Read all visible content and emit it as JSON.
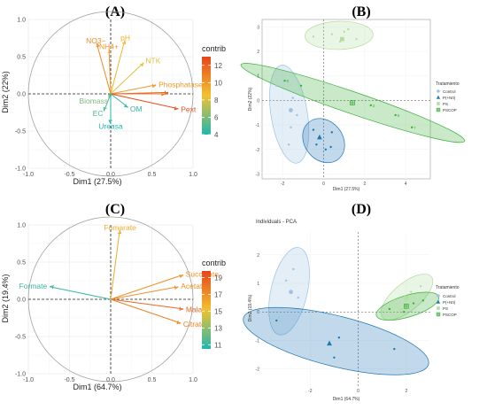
{
  "panels": {
    "A": {
      "label": "(A)",
      "xlabel": "Dim1 (27.5%)",
      "ylabel": "Dim2 (22%)",
      "legend_title": "contrib"
    },
    "B": {
      "label": "(B)",
      "xlabel": "Dim1 (27.5%)",
      "ylabel": "Dim2 (22%)",
      "legend_title": "Tratamiento"
    },
    "C": {
      "label": "(C)",
      "xlabel": "Dim1 (64.7%)",
      "ylabel": "Dim2 (19.4%)",
      "legend_title": "contrib"
    },
    "D": {
      "label": "(D)",
      "title": "Individuals - PCA",
      "xlabel": "Dim1 (64.7%)",
      "ylabel": "Dim2 (19.4%)",
      "legend_title": "Tratamiento"
    }
  },
  "colors": {
    "contrib_low": "#1FB6B0",
    "contrib_mid": "#F2C230",
    "contrib_high": "#E8451A",
    "control": "#9CC3E4",
    "pnd": "#1F77B4",
    "ps": "#B5DDA0",
    "pscop": "#3CAF3C",
    "grid": "#EBEBEB",
    "axis_text": "#4D4D4D"
  },
  "chart_data": [
    {
      "panel": "A",
      "type": "scatter",
      "subtype": "pca-variable-correlation-circle",
      "xlabel": "Dim1 (27.5%)",
      "ylabel": "Dim2 (22%)",
      "xlim": [
        -1.0,
        1.0
      ],
      "ylim": [
        -1.0,
        1.0
      ],
      "x_ticks": [
        "-1.0",
        "-0.5",
        "0.0",
        "0.5",
        "1.0"
      ],
      "y_ticks": [
        "-1.0",
        "-0.5",
        "0.0",
        "0.5",
        "1.0"
      ],
      "legend": {
        "title": "contrib",
        "ticks": [
          "12",
          "10",
          "8",
          "6",
          "4"
        ],
        "range": [
          4,
          13
        ]
      },
      "vectors": [
        {
          "label": "NO3−",
          "x": -0.17,
          "y": 0.68,
          "contrib": 10.5
        },
        {
          "label": "NH4+",
          "x": -0.02,
          "y": 0.6,
          "contrib": 10
        },
        {
          "label": "pH",
          "x": 0.17,
          "y": 0.72,
          "contrib": 9
        },
        {
          "label": "NTK",
          "x": 0.4,
          "y": 0.42,
          "contrib": 8
        },
        {
          "label": "Phosphatase",
          "x": 0.55,
          "y": 0.12,
          "contrib": 10
        },
        {
          "label": "",
          "x": 0.7,
          "y": 0.02,
          "contrib": 12
        },
        {
          "label": "",
          "x": 0.66,
          "y": 0.0,
          "contrib": 11
        },
        {
          "label": "Pext",
          "x": 0.82,
          "y": -0.2,
          "contrib": 12.5
        },
        {
          "label": "Biomass",
          "x": -0.02,
          "y": -0.06,
          "contrib": 6
        },
        {
          "label": "EC",
          "x": -0.08,
          "y": -0.23,
          "contrib": 5
        },
        {
          "label": "OM",
          "x": 0.21,
          "y": -0.18,
          "contrib": 4.5
        },
        {
          "label": "Ureasa",
          "x": 0.0,
          "y": -0.4,
          "contrib": 4
        }
      ]
    },
    {
      "panel": "B",
      "type": "scatter",
      "subtype": "pca-individuals",
      "xlabel": "Dim1 (27.5%)",
      "ylabel": "Dim2 (22%)",
      "x_ticks": [
        "-2",
        "0",
        "2",
        "4"
      ],
      "y_ticks": [
        "3",
        "2",
        "1",
        "0",
        "-1",
        "-2",
        "-3"
      ],
      "xlim": [
        -3.0,
        5.2
      ],
      "ylim": [
        -3.2,
        3.3
      ],
      "legend": {
        "title": "Tratamiento",
        "entries": [
          "Control",
          "P(+N0)",
          "PS",
          "PSCOP"
        ]
      },
      "series": [
        {
          "name": "Control",
          "points": [
            [
              -2.3,
              0.6
            ],
            [
              -1.5,
              0.1
            ],
            [
              -1.3,
              -0.6
            ],
            [
              -1.6,
              -1.1
            ],
            [
              -1.7,
              -1.8
            ]
          ],
          "centroid": [
            -1.6,
            -0.4
          ]
        },
        {
          "name": "P(+N0)",
          "points": [
            [
              -0.5,
              -1.2
            ],
            [
              -0.35,
              -1.8
            ],
            [
              0.1,
              -2.0
            ],
            [
              0.35,
              -1.9
            ],
            [
              0.4,
              -1.3
            ]
          ],
          "centroid": [
            -0.2,
            -1.5
          ]
        },
        {
          "name": "PS",
          "points": [
            [
              -0.5,
              2.6
            ],
            [
              0.4,
              2.7
            ],
            [
              1.0,
              2.8
            ],
            [
              1.2,
              2.9
            ],
            [
              0.8,
              2.4
            ],
            [
              1.6,
              2.5
            ]
          ],
          "centroid": [
            0.9,
            2.5
          ]
        },
        {
          "name": "PSCOP",
          "points": [
            [
              -1.9,
              0.8
            ],
            [
              -1.1,
              0.6
            ],
            [
              2.3,
              -0.2
            ],
            [
              3.5,
              -0.6
            ],
            [
              4.3,
              -1.1
            ]
          ],
          "centroid": [
            1.4,
            -0.1
          ],
          "point_labels": [
            "9",
            "",
            "2",
            "8",
            "7"
          ]
        }
      ]
    },
    {
      "panel": "C",
      "type": "scatter",
      "subtype": "pca-variable-correlation-circle",
      "xlabel": "Dim1 (64.7%)",
      "ylabel": "Dim2 (19.4%)",
      "xlim": [
        -1.0,
        1.0
      ],
      "ylim": [
        -1.0,
        1.0
      ],
      "x_ticks": [
        "-1.0",
        "-0.5",
        "0.0",
        "0.5",
        "1.0"
      ],
      "y_ticks": [
        "-1.0",
        "-0.5",
        "0.0",
        "0.5",
        "1.0"
      ],
      "legend": {
        "title": "contrib",
        "ticks": [
          "19",
          "17",
          "15",
          "13",
          "11"
        ],
        "range": [
          10.5,
          19.8
        ]
      },
      "vectors": [
        {
          "label": "Fumarate",
          "x": 0.11,
          "y": 0.93,
          "contrib": 16
        },
        {
          "label": "Succinate",
          "x": 0.88,
          "y": 0.33,
          "contrib": 17
        },
        {
          "label": "Acetate",
          "x": 0.82,
          "y": 0.17,
          "contrib": 17
        },
        {
          "label": "Malate",
          "x": 0.88,
          "y": -0.13,
          "contrib": 18.5
        },
        {
          "label": "Citrate",
          "x": 0.85,
          "y": -0.32,
          "contrib": 17.5
        },
        {
          "label": "Formate",
          "x": -0.74,
          "y": 0.17,
          "contrib": 11
        }
      ]
    },
    {
      "panel": "D",
      "type": "scatter",
      "subtype": "pca-individuals",
      "title": "Individuals - PCA",
      "xlabel": "Dim1 (64.7%)",
      "ylabel": "Dim2 (19.4%)",
      "x_ticks": [
        "-2",
        "0",
        "2"
      ],
      "y_ticks": [
        "2",
        "1",
        "0",
        "-1",
        "-2"
      ],
      "xlim": [
        -4.0,
        3.0
      ],
      "ylim": [
        -2.6,
        2.8
      ],
      "legend": {
        "title": "Tratamiento",
        "entries": [
          "Control",
          "P(+N0)",
          "PS",
          "PSCOP"
        ]
      },
      "series": [
        {
          "name": "Control",
          "points": [
            [
              -2.7,
              1.5
            ],
            [
              -3.0,
              1.1
            ],
            [
              -2.5,
              0.5
            ],
            [
              -3.3,
              -0.2
            ]
          ],
          "centroid": [
            -2.8,
            0.7
          ]
        },
        {
          "name": "P(+N0)",
          "points": [
            [
              -3.4,
              -0.3
            ],
            [
              -1.0,
              -1.6
            ],
            [
              1.5,
              -1.3
            ],
            [
              -0.8,
              -0.9
            ]
          ],
          "centroid": [
            -1.2,
            -1.1
          ]
        },
        {
          "name": "PS",
          "points": [
            [
              1.5,
              0.4
            ],
            [
              1.8,
              0.1
            ],
            [
              2.2,
              0.7
            ],
            [
              2.6,
              0.9
            ]
          ],
          "centroid": [
            2.0,
            0.5
          ]
        },
        {
          "name": "PSCOP",
          "points": [
            [
              1.3,
              0.1
            ],
            [
              1.9,
              0.0
            ],
            [
              2.3,
              0.3
            ],
            [
              2.7,
              0.4
            ]
          ],
          "centroid": [
            2.0,
            0.2
          ]
        }
      ]
    }
  ]
}
